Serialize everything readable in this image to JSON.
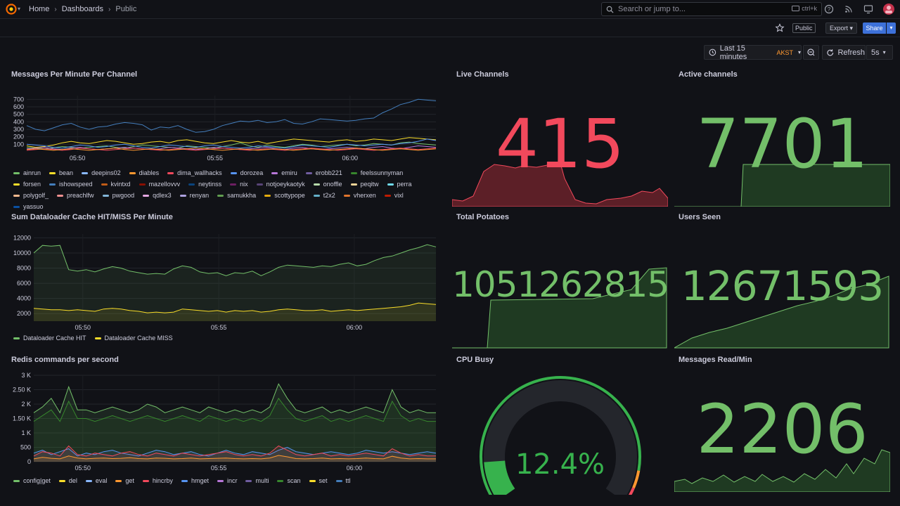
{
  "nav": {
    "breadcrumbs": [
      "Home",
      "Dashboards",
      "Public"
    ],
    "search_placeholder": "Search or jump to...",
    "search_shortcut": "ctrl+k"
  },
  "toolbar": {
    "public_tag": "Public",
    "export_label": "Export",
    "share_label": "Share",
    "time_range": "Last 15 minutes",
    "timezone": "AKST",
    "refresh_label": "Refresh",
    "refresh_interval": "5s"
  },
  "panels": {
    "messages": {
      "title": "Messages Per Minute Per Channel",
      "legend": [
        {
          "name": "ainrun",
          "color": "#73bf69"
        },
        {
          "name": "bean",
          "color": "#fade2a"
        },
        {
          "name": "deepins02",
          "color": "#8ab8ff"
        },
        {
          "name": "diables",
          "color": "#ff9830"
        },
        {
          "name": "dima_wallhacks",
          "color": "#f2495c"
        },
        {
          "name": "dorozea",
          "color": "#5794f2"
        },
        {
          "name": "emiru",
          "color": "#b877d9"
        },
        {
          "name": "erobb221",
          "color": "#705da0"
        },
        {
          "name": "feelssunnyman",
          "color": "#37872d"
        },
        {
          "name": "forsen",
          "color": "#fade2a"
        },
        {
          "name": "ishowspeed",
          "color": "#447ebc"
        },
        {
          "name": "kvintxd",
          "color": "#c15c17"
        },
        {
          "name": "mazellovvv",
          "color": "#890f02"
        },
        {
          "name": "neytinss",
          "color": "#0a437c"
        },
        {
          "name": "nix",
          "color": "#6d1f62"
        },
        {
          "name": "notjoeykaotyk",
          "color": "#584477"
        },
        {
          "name": "onoffle",
          "color": "#b7dbab"
        },
        {
          "name": "peqitw",
          "color": "#f4d598"
        },
        {
          "name": "perra",
          "color": "#70dbed"
        },
        {
          "name": "polygolf_",
          "color": "#f9ba8f"
        },
        {
          "name": "preachlfw",
          "color": "#f29191"
        },
        {
          "name": "pwgood",
          "color": "#82b5d8"
        },
        {
          "name": "qdlex3",
          "color": "#e5a8e2"
        },
        {
          "name": "renyan",
          "color": "#aea2e0"
        },
        {
          "name": "samukkha",
          "color": "#629e51"
        },
        {
          "name": "scottypope",
          "color": "#e5ac0e"
        },
        {
          "name": "t2x2",
          "color": "#64b0c8"
        },
        {
          "name": "vherxen",
          "color": "#e0752d"
        },
        {
          "name": "vixl",
          "color": "#bf1b00"
        },
        {
          "name": "yassuo",
          "color": "#0a50a1"
        }
      ]
    },
    "dataloader": {
      "title": "Sum Dataloader Cache HIT/MISS Per Minute",
      "legend": [
        {
          "name": "Dataloader Cache HIT",
          "color": "#73bf69"
        },
        {
          "name": "Dataloader Cache MISS",
          "color": "#fade2a"
        }
      ]
    },
    "redis": {
      "title": "Redis commands per second",
      "legend": [
        {
          "name": "config|get",
          "color": "#73bf69"
        },
        {
          "name": "del",
          "color": "#fade2a"
        },
        {
          "name": "eval",
          "color": "#8ab8ff"
        },
        {
          "name": "get",
          "color": "#ff9830"
        },
        {
          "name": "hincrby",
          "color": "#f2495c"
        },
        {
          "name": "hmget",
          "color": "#5794f2"
        },
        {
          "name": "incr",
          "color": "#b877d9"
        },
        {
          "name": "multi",
          "color": "#705da0"
        },
        {
          "name": "scan",
          "color": "#37872d"
        },
        {
          "name": "set",
          "color": "#fade2a"
        },
        {
          "name": "ttl",
          "color": "#447ebc"
        }
      ]
    },
    "live_channels": {
      "title": "Live Channels",
      "value": "415",
      "color": "#f2495c"
    },
    "active_channels": {
      "title": "Active channels",
      "value": "7701",
      "color": "#73bf69"
    },
    "total_potatoes": {
      "title": "Total Potatoes",
      "value": "1051262815",
      "color": "#73bf69"
    },
    "users_seen": {
      "title": "Users Seen",
      "value": "12671593",
      "color": "#73bf69"
    },
    "cpu_busy": {
      "title": "CPU Busy",
      "value": "12.4%",
      "fraction": 0.124,
      "color": "#37b24d"
    },
    "messages_read": {
      "title": "Messages Read/Min",
      "value": "2206",
      "color": "#73bf69"
    }
  },
  "chart_data": [
    {
      "type": "line",
      "title": "Messages Per Minute Per Channel",
      "x_ticks": [
        "05:50",
        "05:55",
        "06:00"
      ],
      "y_ticks": [
        "100",
        "200",
        "300",
        "400",
        "500",
        "600",
        "700"
      ],
      "ylim": [
        0,
        750
      ],
      "series": [
        {
          "name": "ishowspeed",
          "values": [
            350,
            300,
            280,
            320,
            360,
            380,
            330,
            300,
            330,
            340,
            370,
            390,
            380,
            360,
            290,
            330,
            320,
            350,
            300,
            260,
            270,
            300,
            350,
            380,
            410,
            400,
            420,
            390,
            400,
            430,
            380,
            370,
            400,
            440,
            430,
            420,
            410,
            420,
            440,
            450,
            520,
            570,
            630,
            660,
            700,
            690,
            680
          ]
        },
        {
          "name": "forsen",
          "values": [
            80,
            60,
            70,
            90,
            120,
            140,
            120,
            110,
            130,
            150,
            140,
            120,
            100,
            110,
            130,
            140,
            120,
            150,
            160,
            140,
            120,
            110,
            130,
            150,
            130,
            120,
            140,
            110,
            130,
            150,
            170,
            160,
            150,
            140,
            130,
            150,
            160,
            140,
            150,
            170,
            160,
            150,
            170,
            190,
            180,
            170,
            160
          ]
        },
        {
          "name": "ainrun",
          "values": [
            60,
            50,
            40,
            55,
            70,
            60,
            50,
            60,
            70,
            80,
            60,
            50,
            70,
            90,
            80,
            70,
            60,
            50,
            80,
            70,
            60,
            50,
            70,
            90,
            120,
            80,
            60,
            90,
            70,
            60,
            80,
            100,
            90,
            70,
            80,
            90,
            100,
            80,
            90,
            110,
            100,
            90,
            120,
            130,
            110,
            100,
            90
          ]
        },
        {
          "name": "dorozea",
          "values": [
            100,
            90,
            80,
            60,
            50,
            70,
            90,
            80,
            60,
            70,
            90,
            100,
            80,
            60,
            50,
            70,
            90,
            80,
            70,
            60,
            80,
            90,
            70,
            60,
            50,
            60,
            80,
            70,
            60,
            50,
            70,
            90,
            80,
            70,
            60,
            80,
            100,
            90,
            80,
            90,
            100,
            90,
            110,
            120,
            140,
            170,
            150
          ]
        },
        {
          "name": "emiru",
          "values": [
            40,
            50,
            60,
            40,
            30,
            50,
            60,
            40,
            30,
            40,
            50,
            60,
            50,
            40,
            30,
            40,
            60,
            50,
            40,
            30,
            40,
            60,
            50,
            40,
            30,
            40,
            50,
            60,
            40,
            30,
            50,
            60,
            40,
            30,
            40,
            50,
            60,
            50,
            40,
            60,
            70,
            50,
            40,
            60,
            80,
            70,
            60
          ]
        },
        {
          "name": "dima_wallhacks",
          "values": [
            20,
            30,
            40,
            30,
            20,
            30,
            50,
            40,
            30,
            20,
            30,
            40,
            50,
            40,
            30,
            20,
            30,
            40,
            30,
            20,
            30,
            40,
            50,
            40,
            30,
            20,
            30,
            40,
            30,
            20,
            30,
            40,
            50,
            40,
            30,
            20,
            30,
            40,
            30,
            20,
            30,
            40,
            50,
            40,
            30,
            40,
            50
          ]
        },
        {
          "name": "diables",
          "values": [
            30,
            40,
            30,
            20,
            30,
            40,
            30,
            20,
            30,
            40,
            50,
            30,
            20,
            30,
            40,
            30,
            20,
            30,
            40,
            50,
            40,
            30,
            20,
            30,
            40,
            30,
            20,
            30,
            40,
            30,
            20,
            30,
            40,
            30,
            20,
            30,
            40,
            50,
            40,
            30,
            20,
            30,
            40,
            30,
            20,
            30,
            40
          ]
        }
      ]
    },
    {
      "type": "line",
      "title": "Sum Dataloader Cache HIT/MISS Per Minute",
      "x_ticks": [
        "05:50",
        "05:55",
        "06:00"
      ],
      "y_ticks": [
        "2000",
        "4000",
        "6000",
        "8000",
        "10000",
        "12000"
      ],
      "ylim": [
        1000,
        12500
      ],
      "series": [
        {
          "name": "Dataloader Cache HIT",
          "values": [
            10000,
            11000,
            10900,
            11000,
            7800,
            7600,
            7800,
            7500,
            7900,
            8200,
            8000,
            7600,
            7400,
            7200,
            7300,
            7200,
            7900,
            8300,
            8100,
            7500,
            7300,
            7400,
            7000,
            7400,
            7300,
            7600,
            7000,
            7500,
            8100,
            8400,
            8300,
            8200,
            8100,
            8300,
            8200,
            8500,
            8700,
            8300,
            8500,
            9000,
            9400,
            9600,
            10000,
            10400,
            10700,
            11100,
            10800
          ]
        },
        {
          "name": "Dataloader Cache MISS",
          "values": [
            2700,
            2600,
            2500,
            2500,
            2400,
            2500,
            2400,
            2300,
            2600,
            2700,
            2600,
            2400,
            2300,
            2100,
            2200,
            2100,
            2200,
            2600,
            2500,
            2400,
            2300,
            2400,
            2200,
            2400,
            2300,
            2400,
            2200,
            2300,
            2500,
            2600,
            2500,
            2400,
            2400,
            2500,
            2300,
            2400,
            2500,
            2400,
            2500,
            2600,
            2700,
            2800,
            2900,
            3100,
            3400,
            3300,
            3200
          ]
        }
      ]
    },
    {
      "type": "area",
      "title": "Redis commands per second",
      "x_ticks": [
        "05:50",
        "05:55",
        "06:00"
      ],
      "y_ticks": [
        "0",
        "500",
        "1 K",
        "1.50 K",
        "2 K",
        "2.50 K",
        "3 K"
      ],
      "ylim": [
        0,
        3000
      ],
      "series": [
        {
          "name": "config|get",
          "values": [
            1700,
            1900,
            2200,
            1700,
            2600,
            1800,
            1800,
            1700,
            1800,
            1900,
            1800,
            1700,
            1800,
            2000,
            1900,
            1700,
            1800,
            1900,
            1800,
            1700,
            1900,
            1800,
            1700,
            1800,
            1700,
            1800,
            1700,
            1900,
            2700,
            2200,
            1800,
            1700,
            1800,
            1900,
            1700,
            1800,
            1700,
            1800,
            1900,
            1800,
            1700,
            2500,
            1900,
            1700,
            1800,
            1700,
            1700
          ]
        },
        {
          "name": "scan",
          "values": [
            1400,
            1600,
            1800,
            1400,
            2100,
            1500,
            1500,
            1400,
            1500,
            1600,
            1500,
            1400,
            1500,
            1600,
            1500,
            1400,
            1500,
            1600,
            1500,
            1400,
            1600,
            1500,
            1400,
            1500,
            1400,
            1500,
            1400,
            1600,
            2200,
            1800,
            1500,
            1400,
            1500,
            1600,
            1400,
            1500,
            1400,
            1500,
            1600,
            1500,
            1400,
            2100,
            1600,
            1400,
            1500,
            1400,
            1400
          ]
        },
        {
          "name": "hmget",
          "values": [
            300,
            400,
            250,
            350,
            450,
            200,
            300,
            250,
            350,
            400,
            300,
            250,
            200,
            300,
            400,
            350,
            250,
            300,
            350,
            250,
            200,
            300,
            400,
            300,
            250,
            350,
            300,
            250,
            400,
            500,
            350,
            300,
            250,
            300,
            350,
            300,
            250,
            300,
            400,
            350,
            300,
            350,
            300,
            250,
            300,
            350,
            300
          ]
        },
        {
          "name": "hincrby",
          "values": [
            200,
            350,
            300,
            200,
            550,
            250,
            200,
            300,
            250,
            200,
            300,
            350,
            250,
            200,
            300,
            250,
            200,
            300,
            250,
            200,
            250,
            300,
            350,
            250,
            200,
            250,
            200,
            300,
            550,
            400,
            250,
            200,
            250,
            300,
            200,
            250,
            200,
            250,
            300,
            250,
            200,
            450,
            300,
            200,
            250,
            200,
            200
          ]
        },
        {
          "name": "get",
          "values": [
            100,
            150,
            120,
            100,
            200,
            130,
            100,
            120,
            130,
            110,
            120,
            140,
            110,
            100,
            130,
            120,
            100,
            110,
            130,
            100,
            110,
            120,
            130,
            110,
            100,
            110,
            100,
            130,
            220,
            170,
            110,
            100,
            110,
            130,
            100,
            110,
            100,
            110,
            130,
            110,
            100,
            190,
            130,
            100,
            110,
            100,
            100
          ]
        }
      ]
    }
  ]
}
